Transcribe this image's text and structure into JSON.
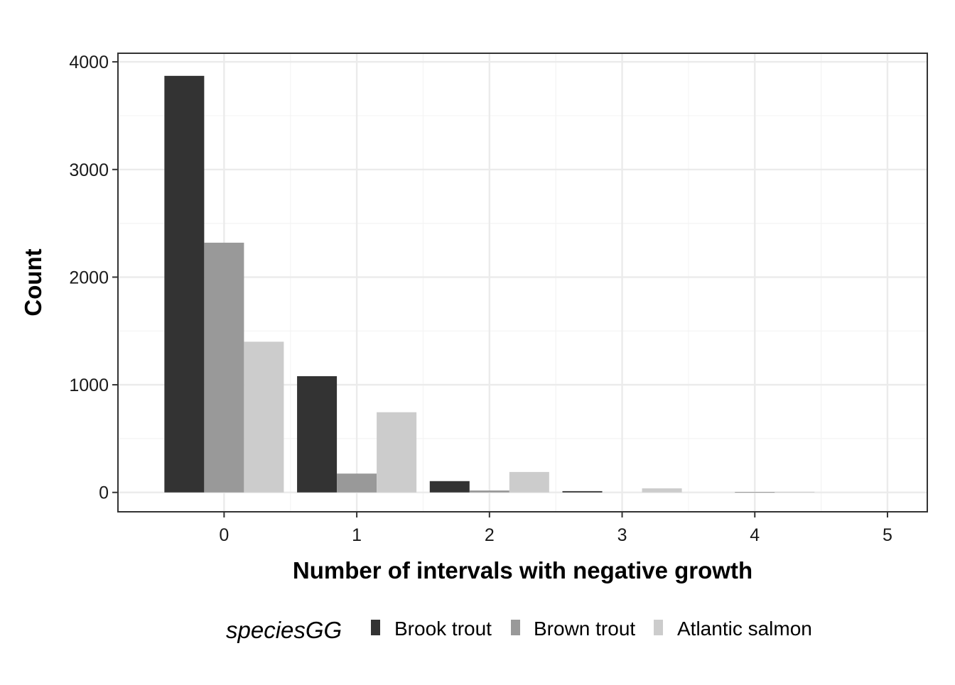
{
  "chart_data": {
    "type": "bar",
    "xlabel": "Number of intervals with negative growth",
    "ylabel": "Count",
    "x_ticks": [
      "0",
      "1",
      "2",
      "3",
      "4",
      "5"
    ],
    "y_ticks": [
      "0",
      "1000",
      "2000",
      "3000",
      "4000"
    ],
    "xlim": [
      -0.8,
      5.3
    ],
    "ylim": [
      -180,
      4080
    ],
    "grid": true,
    "legend": {
      "title": "speciesGG",
      "position": "bottom"
    },
    "series": [
      {
        "name": "Brook trout",
        "color": "#333333",
        "x": [
          0,
          1,
          2,
          3
        ],
        "values": [
          3870,
          1080,
          105,
          12
        ]
      },
      {
        "name": "Brown trout",
        "color": "#999999",
        "x": [
          0,
          1,
          2,
          4
        ],
        "values": [
          2320,
          175,
          18,
          4
        ]
      },
      {
        "name": "Atlantic salmon",
        "color": "#cccccc",
        "x": [
          0,
          1,
          2,
          3,
          4
        ],
        "values": [
          1400,
          745,
          190,
          38,
          6
        ]
      }
    ]
  }
}
